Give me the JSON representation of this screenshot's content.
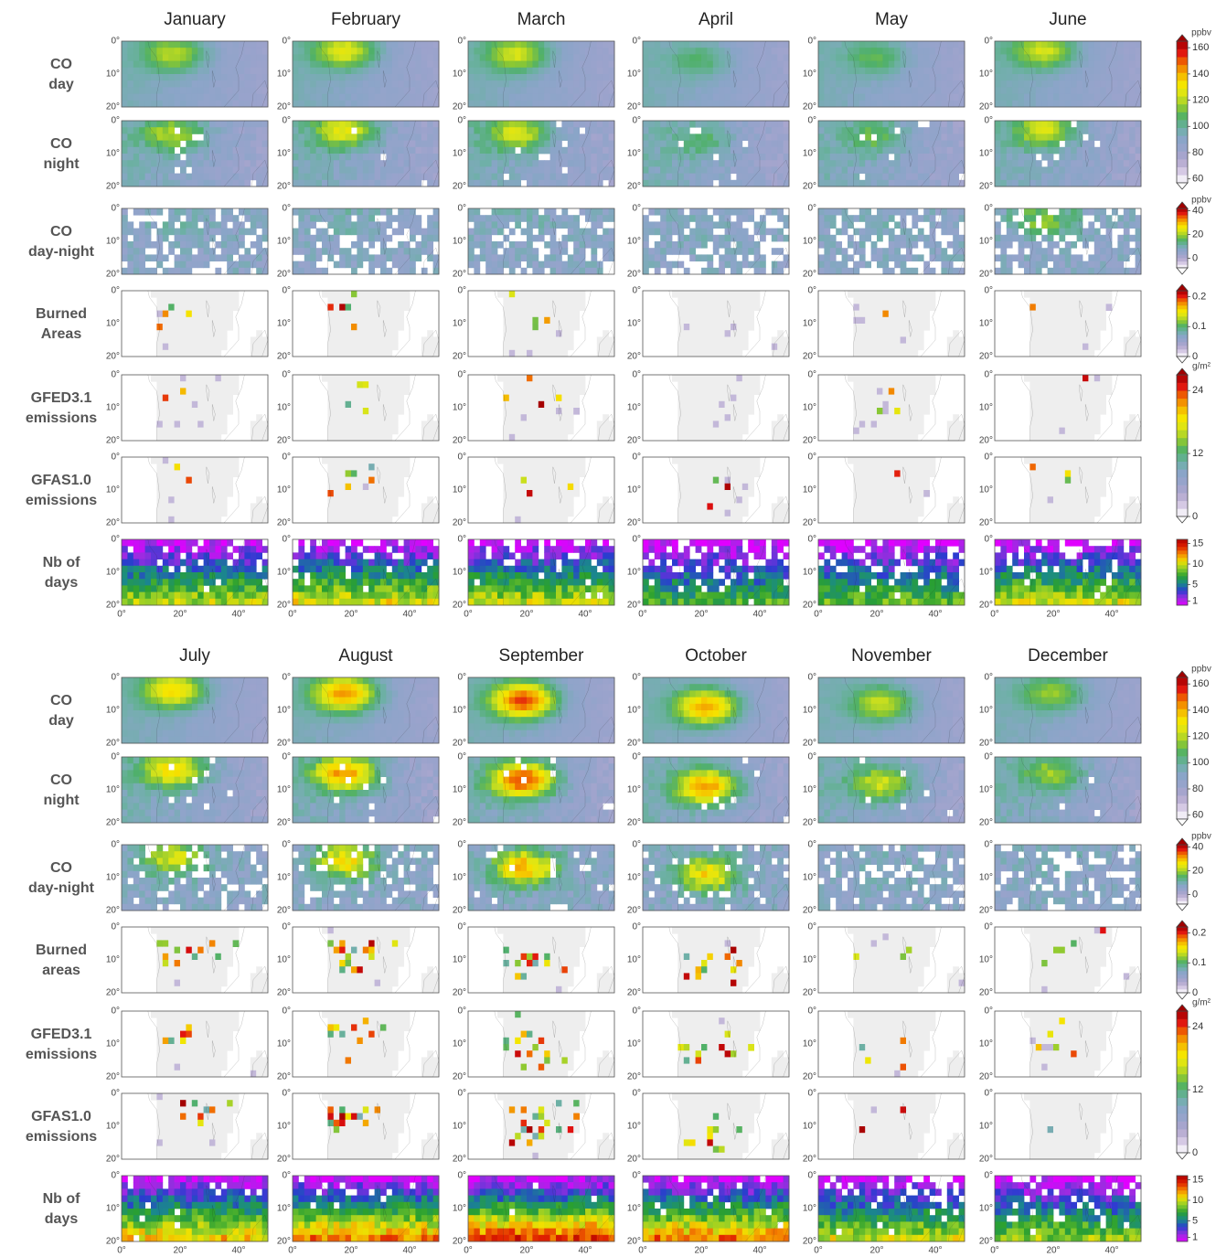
{
  "halves": [
    {
      "months": [
        "January",
        "February",
        "March",
        "April",
        "May",
        "June"
      ],
      "rows": [
        [
          "CO",
          "day"
        ],
        [
          "CO",
          "night"
        ],
        [
          "CO",
          "day-night"
        ],
        [
          "Burned",
          "Areas"
        ],
        [
          "GFED3.1",
          "emissions"
        ],
        [
          "GFAS1.0",
          "emissions"
        ],
        [
          "Nb of",
          "days"
        ]
      ]
    },
    {
      "months": [
        "July",
        "August",
        "September",
        "October",
        "November",
        "December"
      ],
      "rows": [
        [
          "CO",
          "day"
        ],
        [
          "CO",
          "night"
        ],
        [
          "CO",
          "day-night"
        ],
        [
          "Burned",
          "areas"
        ],
        [
          "GFED3.1",
          "emissions"
        ],
        [
          "GFAS1.0",
          "emissions"
        ],
        [
          "Nb of",
          "days"
        ]
      ]
    }
  ],
  "lat_ticks": [
    "0°",
    "10°",
    "20°"
  ],
  "lon_ticks": [
    "0°",
    "20°",
    "40°"
  ],
  "colorbars": [
    {
      "unit": "ppbv",
      "range": [
        57,
        165
      ],
      "ticks": [
        60,
        80,
        100,
        120,
        140,
        160
      ],
      "extend": true,
      "palette": "main"
    },
    {
      "unit": "ppbv",
      "range": [
        -8,
        42
      ],
      "ticks": [
        0,
        20,
        40
      ],
      "extend": true,
      "palette": "main"
    },
    {
      "range": [
        0,
        0.22
      ],
      "ticks": [
        0,
        0.1,
        0.2
      ],
      "extend": true,
      "palette": "main"
    },
    {
      "unit": "g/m²",
      "range": [
        0,
        27
      ],
      "ticks": [
        0,
        12,
        24
      ],
      "extend": true,
      "palette": "main"
    },
    {
      "range": [
        0,
        16
      ],
      "ticks": [
        1,
        5,
        10,
        15
      ],
      "extend": false,
      "palette": "days"
    }
  ]
}
